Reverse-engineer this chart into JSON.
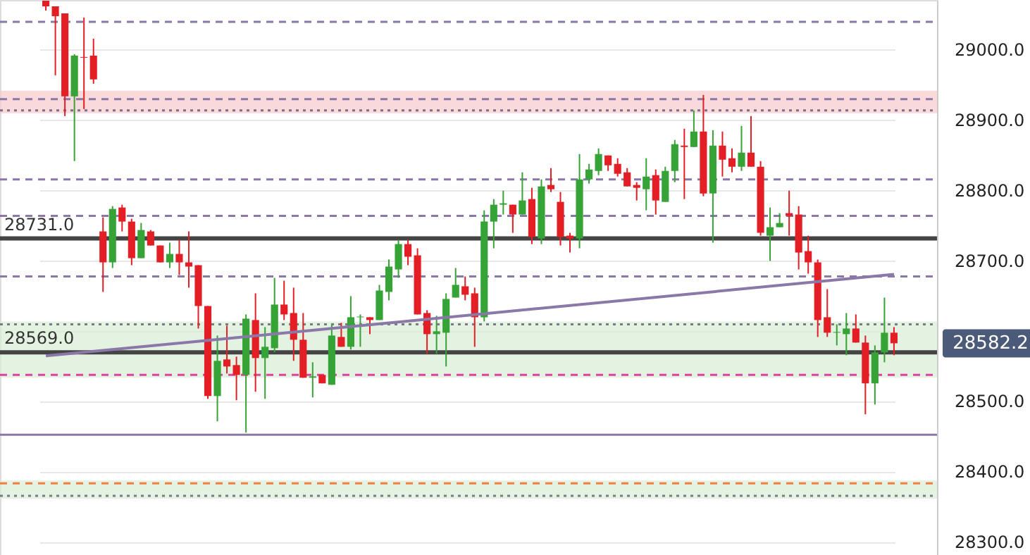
{
  "chart_data": {
    "type": "candlestick",
    "categories": [
      null,
      null,
      null,
      null,
      null,
      null,
      null,
      null,
      null,
      null,
      null,
      null,
      null,
      null,
      null,
      null,
      null,
      null,
      null,
      null,
      null,
      null,
      null,
      null,
      null,
      null,
      null,
      null,
      null,
      null,
      null,
      null,
      null,
      null,
      null,
      null,
      null,
      null,
      null,
      null,
      null,
      null,
      null,
      null,
      null,
      null,
      null,
      null,
      null,
      null,
      null,
      null,
      null,
      null,
      null,
      null,
      null,
      null,
      null,
      null,
      null,
      null,
      null,
      null,
      null,
      null,
      null,
      null,
      null,
      null,
      null,
      null,
      null,
      null,
      null,
      null,
      null,
      null,
      null,
      null,
      null,
      null,
      null,
      null,
      null,
      null,
      null,
      null,
      null,
      null
    ],
    "ohlc": [
      [
        29069,
        29069,
        29055,
        29061
      ],
      [
        29061,
        29061,
        28963,
        29047
      ],
      [
        29051,
        29051,
        28905,
        28933
      ],
      [
        28933,
        28993,
        28841,
        28991
      ],
      [
        28989,
        29045,
        28915,
        28988
      ],
      [
        28991,
        29015,
        28951,
        28957
      ],
      [
        28741,
        28761,
        28655,
        28697
      ],
      [
        28697,
        28777,
        28689,
        28773
      ],
      [
        28775,
        28779,
        28741,
        28755
      ],
      [
        28755,
        28759,
        28693,
        28703
      ],
      [
        28703,
        28753,
        28703,
        28743
      ],
      [
        28741,
        28743,
        28721,
        28721
      ],
      [
        28721,
        28721,
        28697,
        28697
      ],
      [
        28697,
        28725,
        28689,
        28709
      ],
      [
        28709,
        28729,
        28679,
        28697
      ],
      [
        28697,
        28741,
        28661,
        28691
      ],
      [
        28693,
        28693,
        28603,
        28635
      ],
      [
        28635,
        28635,
        28503,
        28507
      ],
      [
        28507,
        28593,
        28471,
        28557
      ],
      [
        28559,
        28607,
        28539,
        28549
      ],
      [
        28551,
        28563,
        28501,
        28537
      ],
      [
        28537,
        28623,
        28455,
        28617
      ],
      [
        28615,
        28653,
        28513,
        28561
      ],
      [
        28561,
        28605,
        28503,
        28577
      ],
      [
        28575,
        28675,
        28569,
        28637
      ],
      [
        28637,
        28671,
        28615,
        28623
      ],
      [
        28625,
        28661,
        28557,
        28587
      ],
      [
        28587,
        28625,
        28533,
        28533
      ],
      [
        28533,
        28555,
        28505,
        28535
      ],
      [
        28537,
        28537,
        28525,
        28525
      ],
      [
        28523,
        28609,
        28523,
        28593
      ],
      [
        28591,
        28611,
        28577,
        28577
      ],
      [
        28577,
        28649,
        28573,
        28619
      ],
      [
        28619,
        28623,
        28577,
        28620
      ],
      [
        28619,
        28619,
        28595,
        28615
      ],
      [
        28615,
        28665,
        28615,
        28657
      ],
      [
        28655,
        28701,
        28643,
        28691
      ],
      [
        28687,
        28729,
        28675,
        28723
      ],
      [
        28723,
        28729,
        28693,
        28705
      ],
      [
        28707,
        28717,
        28623,
        28623
      ],
      [
        28625,
        28629,
        28567,
        28595
      ],
      [
        28595,
        28621,
        28567,
        28599
      ],
      [
        28597,
        28653,
        28549,
        28645
      ],
      [
        28647,
        28689,
        28647,
        28665
      ],
      [
        28663,
        28677,
        28643,
        28651
      ],
      [
        28653,
        28661,
        28577,
        28619
      ],
      [
        28619,
        28771,
        28613,
        28755
      ],
      [
        28755,
        28787,
        28717,
        28779
      ],
      [
        28779,
        28799,
        28765,
        28781
      ],
      [
        28779,
        28779,
        28739,
        28765
      ],
      [
        28765,
        28825,
        28765,
        28785
      ],
      [
        28787,
        28803,
        28723,
        28733
      ],
      [
        28731,
        28815,
        28723,
        28805
      ],
      [
        28807,
        28831,
        28797,
        28801
      ],
      [
        28783,
        28797,
        28721,
        28733
      ],
      [
        28735,
        28739,
        28711,
        28731
      ],
      [
        28731,
        28851,
        28717,
        28815
      ],
      [
        28815,
        28837,
        28809,
        28829
      ],
      [
        28827,
        28859,
        28821,
        28851
      ],
      [
        28849,
        28849,
        28827,
        28835
      ],
      [
        28837,
        28845,
        28819,
        28823
      ],
      [
        28825,
        28831,
        28805,
        28805
      ],
      [
        28807,
        28811,
        28785,
        28803
      ],
      [
        28801,
        28845,
        28771,
        28819
      ],
      [
        28821,
        28829,
        28765,
        28785
      ],
      [
        28783,
        28833,
        28783,
        28827
      ],
      [
        28827,
        28871,
        28811,
        28865
      ],
      [
        28863,
        28887,
        28787,
        28861
      ],
      [
        28861,
        28913,
        28861,
        28883
      ],
      [
        28883,
        28935,
        28791,
        28795
      ],
      [
        28795,
        28885,
        28725,
        28863
      ],
      [
        28863,
        28883,
        28819,
        28843
      ],
      [
        28845,
        28859,
        28825,
        28833
      ],
      [
        28833,
        28891,
        28827,
        28853
      ],
      [
        28853,
        28905,
        28833,
        28833
      ],
      [
        28833,
        28841,
        28735,
        28739
      ],
      [
        28735,
        28775,
        28699,
        28747
      ],
      [
        28747,
        28767,
        28747,
        28753
      ],
      [
        28767,
        28799,
        28735,
        28763
      ],
      [
        28765,
        28777,
        28687,
        28711
      ],
      [
        28713,
        28735,
        28681,
        28697
      ],
      [
        28697,
        28701,
        28591,
        28615
      ],
      [
        28619,
        28659,
        28591,
        28597
      ],
      [
        28597,
        28609,
        28579,
        28598
      ],
      [
        28595,
        28625,
        28565,
        28603
      ],
      [
        28603,
        28623,
        28583,
        28583
      ],
      [
        28583,
        28593,
        28481,
        28525
      ],
      [
        28525,
        28579,
        28495,
        28569
      ],
      [
        28569,
        28647,
        28555,
        28597
      ],
      [
        28597,
        28605,
        28565,
        28582
      ]
    ],
    "colors": [
      "#e31e24",
      "#e31e24",
      "#e31e24",
      "#36a336",
      "#e31e24",
      "#e31e24",
      "#e31e24",
      "#36a336",
      "#e31e24",
      "#e31e24",
      "#36a336",
      "#e31e24",
      "#e31e24",
      "#36a336",
      "#e31e24",
      "#e31e24",
      "#e31e24",
      "#e31e24",
      "#36a336",
      "#e31e24",
      "#e31e24",
      "#36a336",
      "#e31e24",
      "#36a336",
      "#36a336",
      "#e31e24",
      "#e31e24",
      "#e31e24",
      "#36a336",
      "#e31e24",
      "#36a336",
      "#e31e24",
      "#36a336",
      "#36a336",
      "#e31e24",
      "#36a336",
      "#36a336",
      "#36a336",
      "#e31e24",
      "#e31e24",
      "#e31e24",
      "#36a336",
      "#36a336",
      "#36a336",
      "#e31e24",
      "#e31e24",
      "#36a336",
      "#36a336",
      "#36a336",
      "#e31e24",
      "#36a336",
      "#e31e24",
      "#36a336",
      "#e31e24",
      "#e31e24",
      "#e31e24",
      "#36a336",
      "#36a336",
      "#36a336",
      "#e31e24",
      "#e31e24",
      "#e31e24",
      "#e31e24",
      "#36a336",
      "#e31e24",
      "#36a336",
      "#36a336",
      "#e31e24",
      "#36a336",
      "#e31e24",
      "#36a336",
      "#e31e24",
      "#e31e24",
      "#36a336",
      "#e31e24",
      "#e31e24",
      "#36a336",
      "#36a336",
      "#e31e24",
      "#e31e24",
      "#e31e24",
      "#e31e24",
      "#e31e24",
      "#36a336",
      "#36a336",
      "#e31e24",
      "#e31e24",
      "#36a336",
      "#36a336",
      "#e31e24"
    ],
    "series": [
      {
        "type": "line",
        "color": "#8a78a8",
        "values": [
          28564,
          null,
          null,
          null,
          null,
          null,
          null,
          null,
          null,
          null,
          null,
          null,
          null,
          null,
          null,
          null,
          null,
          null,
          null,
          null,
          null,
          null,
          null,
          null,
          null,
          null,
          null,
          null,
          null,
          null,
          null,
          null,
          null,
          null,
          null,
          null,
          null,
          null,
          null,
          null,
          null,
          null,
          null,
          null,
          null,
          null,
          null,
          null,
          null,
          null,
          null,
          null,
          null,
          null,
          null,
          null,
          null,
          null,
          null,
          null,
          null,
          null,
          null,
          null,
          null,
          null,
          null,
          null,
          null,
          null,
          null,
          null,
          null,
          null,
          null,
          null,
          null,
          null,
          null,
          null,
          null,
          null,
          null,
          null,
          null,
          null,
          null,
          null,
          null,
          28680
        ]
      }
    ],
    "ylim": [
      28281,
      29070
    ],
    "yticks": [
      {
        "value": 28300,
        "label": "28300.0"
      },
      {
        "value": 28400,
        "label": "28400.0"
      },
      {
        "value": 28500,
        "label": "28500.0"
      },
      {
        "value": 28600,
        "label": null
      },
      {
        "value": 28700,
        "label": "28700.0"
      },
      {
        "value": 28800,
        "label": "28800.0"
      },
      {
        "value": 28900,
        "label": "28900.0"
      },
      {
        "value": 29000,
        "label": "29000.0"
      }
    ],
    "grid": "y",
    "tick_labels": "y",
    "bands": [
      {
        "axis": "y",
        "from": 28909,
        "to": 28941,
        "color": "#f6c9c9"
      },
      {
        "axis": "y",
        "from": 28533,
        "to": 28613,
        "color": "#d9edd6"
      },
      {
        "axis": "y",
        "from": 28361,
        "to": 28387,
        "color": "#d9edd6"
      }
    ],
    "ref_lines": [
      {
        "axis": "y",
        "value": 29039,
        "color": "#8a78a8",
        "line_style": "dashed"
      },
      {
        "axis": "y",
        "value": 28929,
        "color": "#8a78a8",
        "line_style": "dashed"
      },
      {
        "axis": "y",
        "value": 28913,
        "color": "#7a6f90",
        "line_style": "dotted"
      },
      {
        "axis": "y",
        "value": 28815,
        "color": "#8a78a8",
        "line_style": "dashed"
      },
      {
        "axis": "y",
        "value": 28763,
        "color": "#8a78a8",
        "line_style": "dashed"
      },
      {
        "axis": "y",
        "value": 28677,
        "color": "#8a78a8",
        "line_style": "dashed"
      },
      {
        "axis": "y",
        "value": 28609,
        "color": "#7a7a8a",
        "line_style": "dotted"
      },
      {
        "axis": "y",
        "value": 28537,
        "color": "#e040a0",
        "line_style": "dashed"
      },
      {
        "axis": "y",
        "value": 28452,
        "color": "#8a78a8",
        "line_style": "solid"
      },
      {
        "axis": "y",
        "value": 28383,
        "color": "#f08040",
        "line_style": "dashed"
      },
      {
        "axis": "y",
        "value": 28365,
        "color": "#7a7a8a",
        "line_style": "dotted"
      },
      {
        "axis": "y",
        "value": 28731,
        "label": "28731.0",
        "color": "#444444",
        "line_style": "solid"
      },
      {
        "axis": "y",
        "value": 28569,
        "label": "28569.0",
        "color": "#444444",
        "line_style": "solid"
      }
    ],
    "annotations": [
      "28582.2"
    ]
  }
}
